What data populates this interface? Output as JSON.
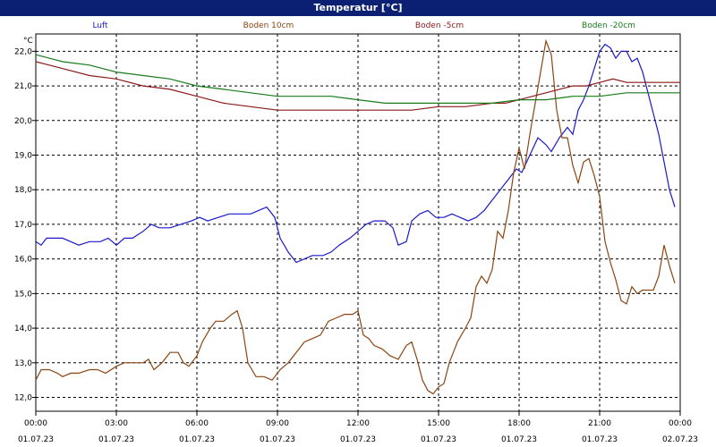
{
  "window": {
    "title": "Temperatur [°C]"
  },
  "chart_data": {
    "type": "line",
    "title": "Temperatur [°C]",
    "ylabel": "°C",
    "ylim": [
      11.6,
      22.5
    ],
    "xlim": [
      0,
      24
    ],
    "grid": true,
    "legend_placement": "top",
    "y_ticks": [
      "12,0",
      "13,0",
      "14,0",
      "15,0",
      "16,0",
      "17,0",
      "18,0",
      "19,0",
      "20,0",
      "21,0",
      "22,0"
    ],
    "y_tick_values": [
      12,
      13,
      14,
      15,
      16,
      17,
      18,
      19,
      20,
      21,
      22
    ],
    "x_ticks": [
      {
        "time": "00:00",
        "date": "01.07.23",
        "h": 0
      },
      {
        "time": "03:00",
        "date": "01.07.23",
        "h": 3
      },
      {
        "time": "06:00",
        "date": "01.07.23",
        "h": 6
      },
      {
        "time": "09:00",
        "date": "01.07.23",
        "h": 9
      },
      {
        "time": "12:00",
        "date": "01.07.23",
        "h": 12
      },
      {
        "time": "15:00",
        "date": "01.07.23",
        "h": 15
      },
      {
        "time": "18:00",
        "date": "01.07.23",
        "h": 18
      },
      {
        "time": "21:00",
        "date": "01.07.23",
        "h": 21
      },
      {
        "time": "00:00",
        "date": "02.07.23",
        "h": 24
      }
    ],
    "series": [
      {
        "name": "Luft",
        "color": "#1a1acc",
        "points": [
          [
            0,
            16.5
          ],
          [
            0.2,
            16.4
          ],
          [
            0.4,
            16.6
          ],
          [
            1,
            16.6
          ],
          [
            1.3,
            16.5
          ],
          [
            1.6,
            16.4
          ],
          [
            2,
            16.5
          ],
          [
            2.4,
            16.5
          ],
          [
            2.7,
            16.6
          ],
          [
            3,
            16.4
          ],
          [
            3.3,
            16.6
          ],
          [
            3.6,
            16.6
          ],
          [
            4,
            16.8
          ],
          [
            4.3,
            17.0
          ],
          [
            4.6,
            16.9
          ],
          [
            5,
            16.9
          ],
          [
            5.4,
            17.0
          ],
          [
            5.8,
            17.1
          ],
          [
            6.1,
            17.2
          ],
          [
            6.4,
            17.1
          ],
          [
            6.8,
            17.2
          ],
          [
            7.2,
            17.3
          ],
          [
            7.6,
            17.3
          ],
          [
            8,
            17.3
          ],
          [
            8.3,
            17.4
          ],
          [
            8.6,
            17.5
          ],
          [
            8.9,
            17.2
          ],
          [
            9.1,
            16.6
          ],
          [
            9.4,
            16.2
          ],
          [
            9.7,
            15.9
          ],
          [
            10,
            16.0
          ],
          [
            10.3,
            16.1
          ],
          [
            10.7,
            16.1
          ],
          [
            11,
            16.2
          ],
          [
            11.3,
            16.4
          ],
          [
            11.7,
            16.6
          ],
          [
            12,
            16.8
          ],
          [
            12.3,
            17.0
          ],
          [
            12.6,
            17.1
          ],
          [
            13,
            17.1
          ],
          [
            13.3,
            16.9
          ],
          [
            13.5,
            16.4
          ],
          [
            13.8,
            16.5
          ],
          [
            14,
            17.1
          ],
          [
            14.3,
            17.3
          ],
          [
            14.6,
            17.4
          ],
          [
            14.9,
            17.2
          ],
          [
            15.2,
            17.2
          ],
          [
            15.5,
            17.3
          ],
          [
            15.8,
            17.2
          ],
          [
            16.1,
            17.1
          ],
          [
            16.4,
            17.2
          ],
          [
            16.7,
            17.4
          ],
          [
            17,
            17.7
          ],
          [
            17.3,
            18.0
          ],
          [
            17.6,
            18.3
          ],
          [
            17.9,
            18.6
          ],
          [
            18.1,
            18.5
          ],
          [
            18.4,
            19.0
          ],
          [
            18.7,
            19.5
          ],
          [
            19,
            19.3
          ],
          [
            19.2,
            19.1
          ],
          [
            19.5,
            19.5
          ],
          [
            19.8,
            19.8
          ],
          [
            20,
            19.6
          ],
          [
            20.2,
            20.3
          ],
          [
            20.4,
            20.6
          ],
          [
            20.6,
            21.0
          ],
          [
            20.8,
            21.5
          ],
          [
            21,
            22.0
          ],
          [
            21.2,
            22.2
          ],
          [
            21.4,
            22.1
          ],
          [
            21.6,
            21.8
          ],
          [
            21.8,
            22.0
          ],
          [
            22,
            22.0
          ],
          [
            22.2,
            21.7
          ],
          [
            22.4,
            21.8
          ],
          [
            22.6,
            21.4
          ],
          [
            22.8,
            20.8
          ],
          [
            23,
            20.2
          ],
          [
            23.2,
            19.6
          ],
          [
            23.4,
            18.8
          ],
          [
            23.6,
            18.0
          ],
          [
            23.8,
            17.5
          ]
        ]
      },
      {
        "name": "Boden 10cm",
        "color": "#8b4513",
        "points": [
          [
            0,
            12.5
          ],
          [
            0.2,
            12.8
          ],
          [
            0.5,
            12.8
          ],
          [
            0.8,
            12.7
          ],
          [
            1,
            12.6
          ],
          [
            1.3,
            12.7
          ],
          [
            1.6,
            12.7
          ],
          [
            2,
            12.8
          ],
          [
            2.3,
            12.8
          ],
          [
            2.6,
            12.7
          ],
          [
            3,
            12.9
          ],
          [
            3.3,
            13.0
          ],
          [
            3.6,
            13.0
          ],
          [
            4,
            13.0
          ],
          [
            4.2,
            13.1
          ],
          [
            4.4,
            12.8
          ],
          [
            4.7,
            13.0
          ],
          [
            5,
            13.3
          ],
          [
            5.3,
            13.3
          ],
          [
            5.5,
            13.0
          ],
          [
            5.7,
            12.9
          ],
          [
            6,
            13.2
          ],
          [
            6.2,
            13.6
          ],
          [
            6.5,
            14.0
          ],
          [
            6.7,
            14.2
          ],
          [
            7,
            14.2
          ],
          [
            7.3,
            14.4
          ],
          [
            7.5,
            14.5
          ],
          [
            7.7,
            14.0
          ],
          [
            7.9,
            13.0
          ],
          [
            8.2,
            12.6
          ],
          [
            8.5,
            12.6
          ],
          [
            8.8,
            12.5
          ],
          [
            9.1,
            12.8
          ],
          [
            9.4,
            13.0
          ],
          [
            9.7,
            13.3
          ],
          [
            10,
            13.6
          ],
          [
            10.3,
            13.7
          ],
          [
            10.6,
            13.8
          ],
          [
            10.9,
            14.2
          ],
          [
            11.2,
            14.3
          ],
          [
            11.5,
            14.4
          ],
          [
            11.8,
            14.4
          ],
          [
            12,
            14.5
          ],
          [
            12.2,
            13.8
          ],
          [
            12.4,
            13.7
          ],
          [
            12.6,
            13.5
          ],
          [
            12.9,
            13.4
          ],
          [
            13.2,
            13.2
          ],
          [
            13.5,
            13.1
          ],
          [
            13.8,
            13.5
          ],
          [
            14,
            13.6
          ],
          [
            14.2,
            13.1
          ],
          [
            14.4,
            12.5
          ],
          [
            14.6,
            12.2
          ],
          [
            14.8,
            12.1
          ],
          [
            15,
            12.3
          ],
          [
            15.2,
            12.4
          ],
          [
            15.4,
            13.0
          ],
          [
            15.7,
            13.6
          ],
          [
            16,
            14.0
          ],
          [
            16.2,
            14.3
          ],
          [
            16.4,
            15.2
          ],
          [
            16.6,
            15.5
          ],
          [
            16.8,
            15.3
          ],
          [
            17,
            15.7
          ],
          [
            17.2,
            16.8
          ],
          [
            17.4,
            16.6
          ],
          [
            17.6,
            17.4
          ],
          [
            17.8,
            18.5
          ],
          [
            18,
            19.2
          ],
          [
            18.2,
            18.6
          ],
          [
            18.4,
            19.6
          ],
          [
            18.6,
            20.5
          ],
          [
            18.8,
            21.4
          ],
          [
            19,
            22.3
          ],
          [
            19.2,
            21.9
          ],
          [
            19.4,
            20.3
          ],
          [
            19.6,
            19.5
          ],
          [
            19.8,
            19.5
          ],
          [
            20,
            18.7
          ],
          [
            20.2,
            18.2
          ],
          [
            20.4,
            18.8
          ],
          [
            20.6,
            18.9
          ],
          [
            20.8,
            18.4
          ],
          [
            21,
            17.8
          ],
          [
            21.2,
            16.5
          ],
          [
            21.4,
            15.9
          ],
          [
            21.6,
            15.4
          ],
          [
            21.8,
            14.8
          ],
          [
            22,
            14.7
          ],
          [
            22.2,
            15.2
          ],
          [
            22.4,
            15.0
          ],
          [
            22.6,
            15.1
          ],
          [
            22.8,
            15.1
          ],
          [
            23,
            15.1
          ],
          [
            23.2,
            15.5
          ],
          [
            23.4,
            16.4
          ],
          [
            23.6,
            15.8
          ],
          [
            23.8,
            15.3
          ]
        ]
      },
      {
        "name": "Boden -5cm",
        "color": "#8b1a1a",
        "points": [
          [
            0,
            21.7
          ],
          [
            0.5,
            21.6
          ],
          [
            1,
            21.5
          ],
          [
            2,
            21.3
          ],
          [
            3,
            21.2
          ],
          [
            4,
            21.0
          ],
          [
            5,
            20.9
          ],
          [
            6,
            20.7
          ],
          [
            7,
            20.5
          ],
          [
            8,
            20.4
          ],
          [
            9,
            20.3
          ],
          [
            10,
            20.3
          ],
          [
            11,
            20.3
          ],
          [
            12,
            20.3
          ],
          [
            13,
            20.3
          ],
          [
            14,
            20.3
          ],
          [
            15,
            20.4
          ],
          [
            16,
            20.4
          ],
          [
            17,
            20.5
          ],
          [
            17.5,
            20.5
          ],
          [
            18,
            20.6
          ],
          [
            18.5,
            20.7
          ],
          [
            19,
            20.8
          ],
          [
            19.5,
            20.9
          ],
          [
            20,
            21.0
          ],
          [
            20.5,
            21.0
          ],
          [
            21,
            21.1
          ],
          [
            21.5,
            21.2
          ],
          [
            22,
            21.1
          ],
          [
            22.5,
            21.1
          ],
          [
            23,
            21.1
          ],
          [
            23.5,
            21.1
          ],
          [
            24,
            21.1
          ]
        ]
      },
      {
        "name": "Boden -20cm",
        "color": "#1a7a1a",
        "points": [
          [
            0,
            21.9
          ],
          [
            0.5,
            21.8
          ],
          [
            1,
            21.7
          ],
          [
            2,
            21.6
          ],
          [
            3,
            21.4
          ],
          [
            4,
            21.3
          ],
          [
            5,
            21.2
          ],
          [
            6,
            21.0
          ],
          [
            7,
            20.9
          ],
          [
            8,
            20.8
          ],
          [
            9,
            20.7
          ],
          [
            10,
            20.7
          ],
          [
            11,
            20.7
          ],
          [
            12,
            20.6
          ],
          [
            13,
            20.5
          ],
          [
            14,
            20.5
          ],
          [
            15,
            20.5
          ],
          [
            16,
            20.5
          ],
          [
            17,
            20.5
          ],
          [
            18,
            20.6
          ],
          [
            19,
            20.6
          ],
          [
            20,
            20.7
          ],
          [
            21,
            20.7
          ],
          [
            22,
            20.8
          ],
          [
            23,
            20.8
          ],
          [
            24,
            20.8
          ]
        ]
      }
    ]
  }
}
